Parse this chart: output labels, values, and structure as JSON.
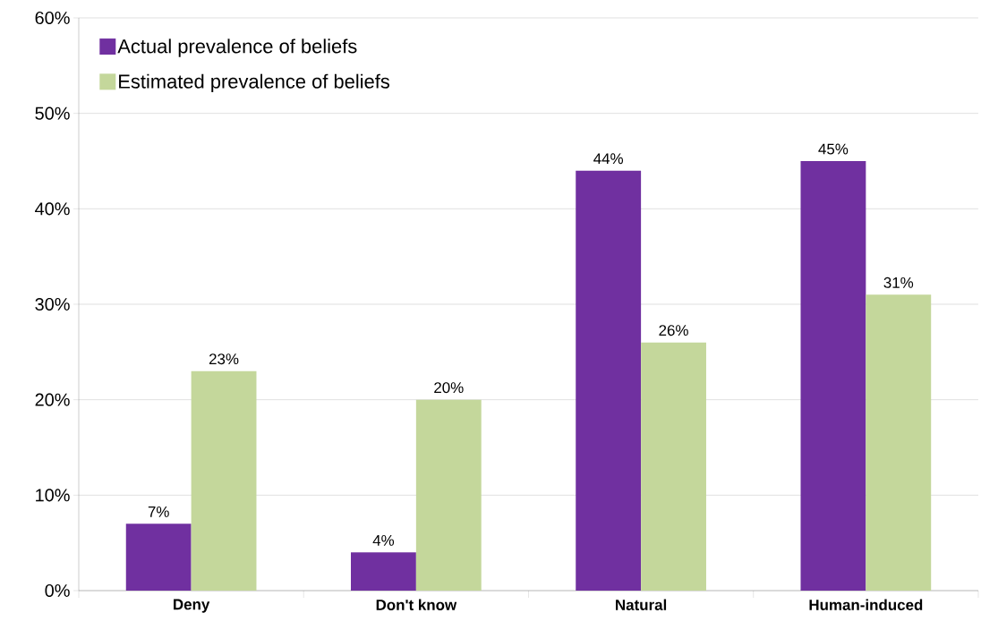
{
  "chart_data": {
    "type": "bar",
    "categories": [
      "Deny",
      "Don't know",
      "Natural",
      "Human-induced"
    ],
    "series": [
      {
        "name": "Actual prevalence of beliefs",
        "color": "#7030a0",
        "values": [
          7,
          4,
          44,
          45
        ],
        "value_labels": [
          "7%",
          "4%",
          "44%",
          "45%"
        ]
      },
      {
        "name": "Estimated prevalence of beliefs",
        "color": "#c4d79b",
        "values": [
          23,
          20,
          26,
          31
        ],
        "value_labels": [
          "23%",
          "20%",
          "26%",
          "31%"
        ]
      }
    ],
    "ylim": [
      0,
      60
    ],
    "yticks": [
      {
        "value": 0,
        "label": "0%"
      },
      {
        "value": 10,
        "label": "10%"
      },
      {
        "value": 20,
        "label": "20%"
      },
      {
        "value": 30,
        "label": "30%"
      },
      {
        "value": 40,
        "label": "40%"
      },
      {
        "value": 50,
        "label": "50%"
      },
      {
        "value": 60,
        "label": "60%"
      }
    ],
    "grid": "y",
    "legend": "top left"
  }
}
